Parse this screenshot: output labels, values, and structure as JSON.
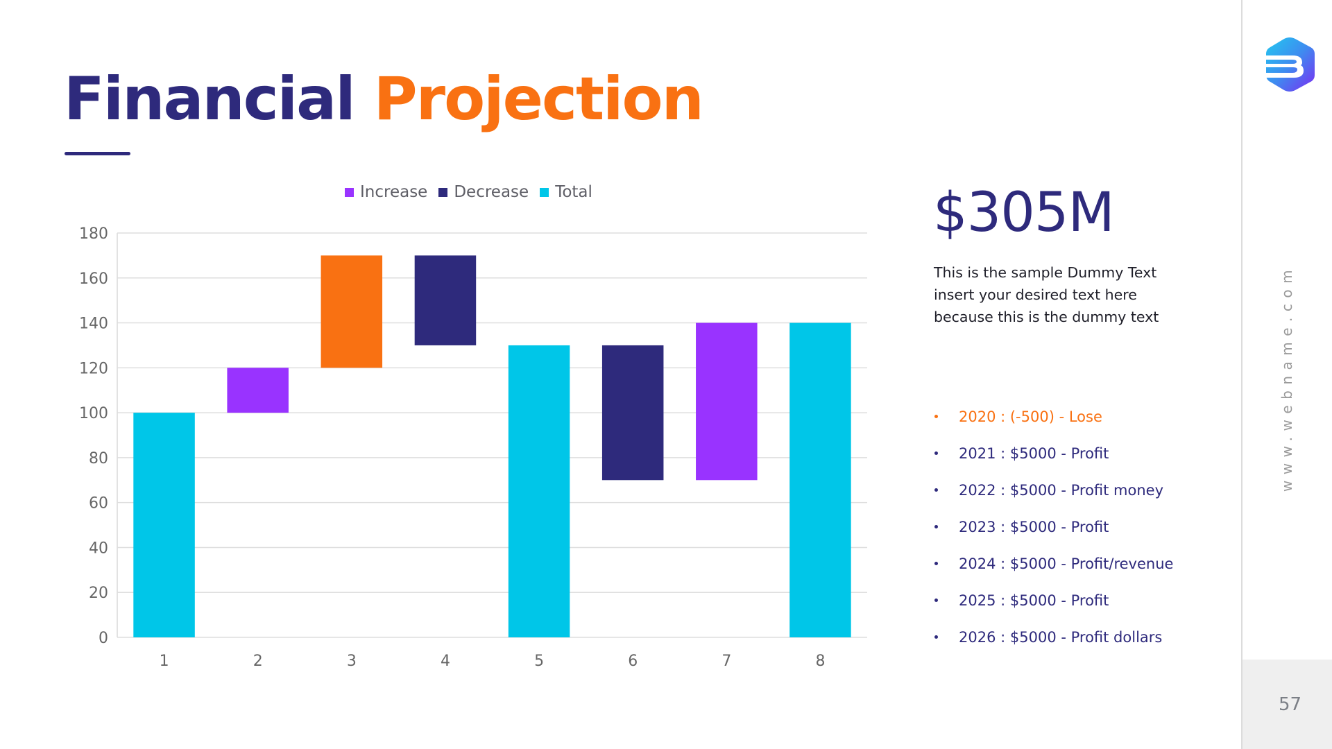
{
  "slide": {
    "title_part1": "Financial",
    "title_part2": "Projection",
    "big_value": "$305M",
    "description": "This is the sample Dummy Text insert your desired text here because this is the dummy text",
    "bullets": [
      {
        "text": "2020 : (-500) - Lose",
        "highlight": true
      },
      {
        "text": "2021 : $5000 - Profit",
        "highlight": false
      },
      {
        "text": "2022 : $5000 - Profit money",
        "highlight": false
      },
      {
        "text": "2023 : $5000 - Profit",
        "highlight": false
      },
      {
        "text": "2024 : $5000 - Profit/revenue",
        "highlight": false
      },
      {
        "text": "2025 : $5000 - Profit",
        "highlight": false
      },
      {
        "text": "2026 : $5000 - Profit dollars",
        "highlight": false
      }
    ],
    "colors": {
      "navy": "#2e2a7c",
      "orange": "#f97112",
      "purple": "#9933ff",
      "cyan": "#00c6e8"
    }
  },
  "sidebar": {
    "logo_icon": "hexagon-b-logo-icon",
    "website": "www.webname.com",
    "page_number": "57"
  },
  "chart_data": {
    "type": "bar",
    "subtype": "waterfall",
    "title": "",
    "xlabel": "",
    "ylabel": "",
    "categories": [
      "1",
      "2",
      "3",
      "4",
      "5",
      "6",
      "7",
      "8"
    ],
    "ylim": [
      0,
      180
    ],
    "yticks": [
      0,
      20,
      40,
      60,
      80,
      100,
      120,
      140,
      160,
      180
    ],
    "grid": true,
    "legend_position": "top-center",
    "legend": [
      {
        "name": "Increase",
        "color": "#9933ff"
      },
      {
        "name": "Decrease",
        "color": "#2e2a7c"
      },
      {
        "name": "Total",
        "color": "#00c6e8"
      }
    ],
    "bars": [
      {
        "category": "1",
        "type": "Total",
        "start": 0,
        "end": 100,
        "color": "#00c6e8"
      },
      {
        "category": "2",
        "type": "Increase",
        "start": 100,
        "end": 120,
        "color": "#9933ff"
      },
      {
        "category": "3",
        "type": "Increase",
        "start": 120,
        "end": 170,
        "color": "#f97112"
      },
      {
        "category": "4",
        "type": "Decrease",
        "start": 170,
        "end": 130,
        "color": "#2e2a7c"
      },
      {
        "category": "5",
        "type": "Total",
        "start": 0,
        "end": 130,
        "color": "#00c6e8"
      },
      {
        "category": "6",
        "type": "Decrease",
        "start": 130,
        "end": 70,
        "color": "#2e2a7c"
      },
      {
        "category": "7",
        "type": "Increase",
        "start": 70,
        "end": 140,
        "color": "#9933ff"
      },
      {
        "category": "8",
        "type": "Total",
        "start": 0,
        "end": 140,
        "color": "#00c6e8"
      }
    ]
  }
}
